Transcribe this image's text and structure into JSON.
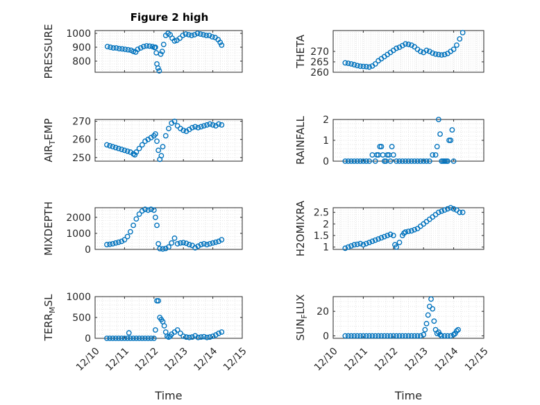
{
  "title": "Figure 2 high",
  "colors": {
    "marker": "#0072BD",
    "axis": "#262626",
    "grid": "#d9d9d9"
  },
  "chart_data": [
    {
      "type": "scatter",
      "ylabel": "PRESSURE",
      "xlabel": "",
      "title": "Figure 2 high",
      "xlim": [
        10,
        15
      ],
      "ylim": [
        720,
        1020
      ],
      "yticks": [
        800,
        900,
        1000
      ],
      "ytick_labels": [
        "800",
        "900",
        "1000"
      ],
      "xticks": [
        10,
        11,
        12,
        13,
        14,
        15
      ],
      "xtick_labels": [],
      "x": [
        10.42,
        10.52,
        10.62,
        10.72,
        10.82,
        10.92,
        11.02,
        11.12,
        11.22,
        11.3,
        11.38,
        11.45,
        11.55,
        11.65,
        11.75,
        11.85,
        11.95,
        12.02,
        12.05,
        12.08,
        12.1,
        12.14,
        12.18,
        12.23,
        12.28,
        12.33,
        12.4,
        12.48,
        12.55,
        12.62,
        12.7,
        12.78,
        12.88,
        12.98,
        13.08,
        13.18,
        13.28,
        13.38,
        13.48,
        13.58,
        13.68,
        13.78,
        13.88,
        13.98,
        14.08,
        14.18,
        14.25,
        14.3
      ],
      "y": [
        905,
        900,
        895,
        895,
        890,
        888,
        885,
        882,
        878,
        870,
        865,
        885,
        895,
        905,
        910,
        908,
        905,
        898,
        900,
        860,
        780,
        750,
        730,
        850,
        870,
        920,
        985,
        1000,
        990,
        965,
        945,
        950,
        965,
        985,
        995,
        990,
        985,
        990,
        1000,
        995,
        990,
        985,
        985,
        975,
        970,
        955,
        935,
        915
      ],
      "grid": true,
      "marker": "circle"
    },
    {
      "type": "scatter",
      "ylabel": "THETA",
      "xlabel": "",
      "xlim": [
        10,
        15
      ],
      "ylim": [
        260,
        280
      ],
      "yticks": [
        260,
        265,
        270
      ],
      "ytick_labels": [
        "260",
        "265",
        "270"
      ],
      "xticks": [
        10,
        11,
        12,
        13,
        14,
        15
      ],
      "xtick_labels": [],
      "x": [
        10.4,
        10.5,
        10.6,
        10.7,
        10.8,
        10.9,
        11.0,
        11.1,
        11.2,
        11.3,
        11.4,
        11.5,
        11.6,
        11.7,
        11.8,
        11.9,
        12.0,
        12.1,
        12.2,
        12.3,
        12.4,
        12.5,
        12.6,
        12.7,
        12.8,
        12.9,
        13.0,
        13.1,
        13.2,
        13.3,
        13.4,
        13.5,
        13.6,
        13.7,
        13.8,
        13.9,
        14.0,
        14.1,
        14.2,
        14.3
      ],
      "y": [
        264.5,
        264.3,
        264,
        263.6,
        263.2,
        262.9,
        262.8,
        262.7,
        262.5,
        263,
        264,
        265.5,
        266.5,
        267.5,
        268.5,
        269.5,
        270.5,
        271.5,
        272,
        272.8,
        273.6,
        273.4,
        273,
        272.2,
        271,
        270,
        269.5,
        270.5,
        270,
        269.2,
        268.7,
        268.5,
        268.3,
        268.5,
        269,
        270,
        271,
        273,
        276,
        279
      ],
      "grid": true,
      "marker": "circle"
    },
    {
      "type": "scatter",
      "ylabel": "AIR_TEMP",
      "xlabel": "",
      "xlim": [
        10,
        15
      ],
      "ylim": [
        248,
        271
      ],
      "yticks": [
        250,
        260,
        270
      ],
      "ytick_labels": [
        "250",
        "260",
        "270"
      ],
      "xticks": [
        10,
        11,
        12,
        13,
        14,
        15
      ],
      "xtick_labels": [],
      "x": [
        10.4,
        10.5,
        10.6,
        10.7,
        10.8,
        10.9,
        11.0,
        11.1,
        11.2,
        11.3,
        11.35,
        11.4,
        11.5,
        11.6,
        11.7,
        11.8,
        11.9,
        12.0,
        12.05,
        12.1,
        12.15,
        12.2,
        12.25,
        12.3,
        12.4,
        12.5,
        12.6,
        12.7,
        12.8,
        12.9,
        13.0,
        13.1,
        13.2,
        13.3,
        13.4,
        13.5,
        13.6,
        13.7,
        13.8,
        13.9,
        14.0,
        14.1,
        14.2,
        14.3
      ],
      "y": [
        257,
        256.5,
        256,
        255.5,
        255,
        254.5,
        254,
        253.5,
        253,
        252,
        251.5,
        253,
        255,
        257,
        259,
        260,
        261,
        262,
        263,
        259,
        254,
        249,
        251,
        256,
        262,
        266,
        269,
        270,
        267.5,
        266,
        265,
        264.5,
        265.5,
        266.5,
        267,
        266.5,
        267,
        267.5,
        268,
        268.5,
        268,
        267.5,
        268.5,
        268
      ],
      "grid": true,
      "marker": "circle"
    },
    {
      "type": "scatter",
      "ylabel": "RAINFALL",
      "xlabel": "",
      "xlim": [
        10,
        15
      ],
      "ylim": [
        0,
        2
      ],
      "yticks": [
        0,
        1,
        2
      ],
      "ytick_labels": [
        "0",
        "1",
        "2"
      ],
      "xticks": [
        10,
        11,
        12,
        13,
        14,
        15
      ],
      "xtick_labels": [],
      "x": [
        10.4,
        10.5,
        10.6,
        10.7,
        10.8,
        10.9,
        11.0,
        11.1,
        11.2,
        11.3,
        11.4,
        11.45,
        11.5,
        11.55,
        11.6,
        11.65,
        11.7,
        11.75,
        11.8,
        11.85,
        11.9,
        11.95,
        12.0,
        12.1,
        12.2,
        12.3,
        12.4,
        12.5,
        12.6,
        12.7,
        12.8,
        12.9,
        13.0,
        13.1,
        13.2,
        13.3,
        13.4,
        13.45,
        13.5,
        13.55,
        13.6,
        13.65,
        13.7,
        13.75,
        13.8,
        13.85,
        13.9,
        13.95,
        14.0
      ],
      "y": [
        0,
        0,
        0,
        0,
        0,
        0,
        0,
        0,
        0,
        0.3,
        0,
        0.3,
        0.3,
        0.7,
        0.7,
        0.3,
        0,
        0,
        0.3,
        0.3,
        0,
        0.7,
        0.3,
        0,
        0,
        0,
        0,
        0,
        0,
        0,
        0,
        0,
        0,
        0,
        0,
        0.3,
        0.3,
        0.7,
        2,
        1.3,
        0,
        0,
        0,
        0,
        0,
        1,
        1,
        1.5,
        0
      ],
      "grid": true,
      "marker": "circle"
    },
    {
      "type": "scatter",
      "ylabel": "MIXDEPTH",
      "xlabel": "",
      "xlim": [
        10,
        15
      ],
      "ylim": [
        0,
        2600
      ],
      "yticks": [
        0,
        1000,
        2000
      ],
      "ytick_labels": [
        "0",
        "1000",
        "2000"
      ],
      "xticks": [
        10,
        11,
        12,
        13,
        14,
        15
      ],
      "xtick_labels": [],
      "x": [
        10.4,
        10.5,
        10.6,
        10.7,
        10.8,
        10.9,
        11.0,
        11.1,
        11.2,
        11.3,
        11.4,
        11.5,
        11.6,
        11.7,
        11.8,
        11.9,
        12.0,
        12.05,
        12.1,
        12.15,
        12.2,
        12.3,
        12.4,
        12.5,
        12.6,
        12.7,
        12.8,
        12.9,
        13.0,
        13.1,
        13.2,
        13.3,
        13.4,
        13.5,
        13.6,
        13.7,
        13.8,
        13.9,
        14.0,
        14.1,
        14.2,
        14.3
      ],
      "y": [
        300,
        320,
        350,
        400,
        450,
        500,
        600,
        800,
        1100,
        1500,
        1900,
        2200,
        2400,
        2500,
        2450,
        2500,
        2450,
        2000,
        1500,
        350,
        50,
        30,
        60,
        150,
        400,
        700,
        350,
        400,
        420,
        380,
        300,
        250,
        100,
        200,
        300,
        350,
        300,
        350,
        400,
        450,
        500,
        600
      ],
      "grid": true,
      "marker": "circle"
    },
    {
      "type": "scatter",
      "ylabel": "H2OMIXRA",
      "xlabel": "",
      "xlim": [
        10,
        15
      ],
      "ylim": [
        0.9,
        2.7
      ],
      "yticks": [
        1,
        1.5,
        2,
        2.5
      ],
      "ytick_labels": [
        "1",
        "1.5",
        "2",
        "2.5"
      ],
      "xticks": [
        10,
        11,
        12,
        13,
        14,
        15
      ],
      "xtick_labels": [],
      "x": [
        10.4,
        10.5,
        10.6,
        10.7,
        10.8,
        10.9,
        11.0,
        11.1,
        11.2,
        11.3,
        11.4,
        11.5,
        11.6,
        11.7,
        11.8,
        11.9,
        12.0,
        12.05,
        12.1,
        12.2,
        12.3,
        12.35,
        12.4,
        12.5,
        12.6,
        12.7,
        12.8,
        12.9,
        13.0,
        13.1,
        13.2,
        13.3,
        13.4,
        13.5,
        13.6,
        13.7,
        13.8,
        13.9,
        14.0,
        14.1,
        14.2,
        14.3
      ],
      "y": [
        0.95,
        1.0,
        1.05,
        1.1,
        1.12,
        1.15,
        1.1,
        1.15,
        1.2,
        1.25,
        1.3,
        1.35,
        1.4,
        1.45,
        1.5,
        1.55,
        1.5,
        1.1,
        1.0,
        1.2,
        1.5,
        1.6,
        1.65,
        1.68,
        1.7,
        1.75,
        1.8,
        1.9,
        2.0,
        2.1,
        2.2,
        2.3,
        2.4,
        2.5,
        2.55,
        2.6,
        2.65,
        2.7,
        2.65,
        2.6,
        2.5,
        2.5
      ],
      "grid": true,
      "marker": "circle"
    },
    {
      "type": "scatter",
      "ylabel": "TERR_MSL",
      "xlabel": "Time",
      "xlim": [
        10,
        15
      ],
      "ylim": [
        0,
        1000
      ],
      "yticks": [
        0,
        500,
        1000
      ],
      "ytick_labels": [
        "0",
        "500",
        "1000"
      ],
      "xticks": [
        10,
        11,
        12,
        13,
        14,
        15
      ],
      "xtick_labels": [
        "12/10",
        "12/11",
        "12/12",
        "12/13",
        "12/14",
        "12/15"
      ],
      "x": [
        10.4,
        10.5,
        10.6,
        10.7,
        10.8,
        10.9,
        11.0,
        11.1,
        11.15,
        11.2,
        11.3,
        11.4,
        11.5,
        11.6,
        11.7,
        11.8,
        11.9,
        12.0,
        12.05,
        12.1,
        12.15,
        12.2,
        12.25,
        12.3,
        12.35,
        12.4,
        12.45,
        12.5,
        12.55,
        12.6,
        12.7,
        12.8,
        12.9,
        13.0,
        13.1,
        13.2,
        13.3,
        13.4,
        13.5,
        13.6,
        13.7,
        13.8,
        13.9,
        14.0,
        14.1,
        14.2,
        14.3
      ],
      "y": [
        0,
        0,
        0,
        0,
        0,
        0,
        0,
        0,
        130,
        0,
        0,
        0,
        0,
        0,
        0,
        0,
        0,
        0,
        200,
        900,
        900,
        500,
        450,
        400,
        300,
        150,
        50,
        30,
        50,
        100,
        150,
        200,
        120,
        50,
        30,
        20,
        30,
        60,
        20,
        30,
        40,
        20,
        30,
        50,
        80,
        120,
        150
      ],
      "grid": true,
      "marker": "circle"
    },
    {
      "type": "scatter",
      "ylabel": "SUN_FLUX",
      "xlabel": "Time",
      "xlim": [
        10,
        15
      ],
      "ylim": [
        -2,
        32
      ],
      "yticks": [
        0,
        20
      ],
      "ytick_labels": [
        "0",
        "20"
      ],
      "xticks": [
        10,
        11,
        12,
        13,
        14,
        15
      ],
      "xtick_labels": [
        "12/10",
        "12/11",
        "12/12",
        "12/13",
        "12/14",
        "12/15"
      ],
      "x": [
        10.4,
        10.5,
        10.6,
        10.7,
        10.8,
        10.9,
        11.0,
        11.1,
        11.2,
        11.3,
        11.4,
        11.5,
        11.6,
        11.7,
        11.8,
        11.9,
        12.0,
        12.1,
        12.2,
        12.3,
        12.4,
        12.5,
        12.6,
        12.7,
        12.8,
        12.9,
        13.0,
        13.05,
        13.1,
        13.15,
        13.2,
        13.25,
        13.3,
        13.35,
        13.4,
        13.45,
        13.5,
        13.55,
        13.6,
        13.7,
        13.8,
        13.9,
        14.0,
        14.05,
        14.1,
        14.15
      ],
      "y": [
        0,
        0,
        0,
        0,
        0,
        0,
        0,
        0,
        0,
        0,
        0,
        0,
        0,
        0,
        0,
        0,
        0,
        0,
        0,
        0,
        0,
        0,
        0,
        0,
        0,
        0,
        1,
        5,
        10,
        17,
        24,
        30,
        22,
        12,
        5,
        2,
        3,
        1,
        0,
        0,
        0,
        0,
        1,
        2,
        4,
        5
      ],
      "grid": true,
      "marker": "circle"
    }
  ]
}
